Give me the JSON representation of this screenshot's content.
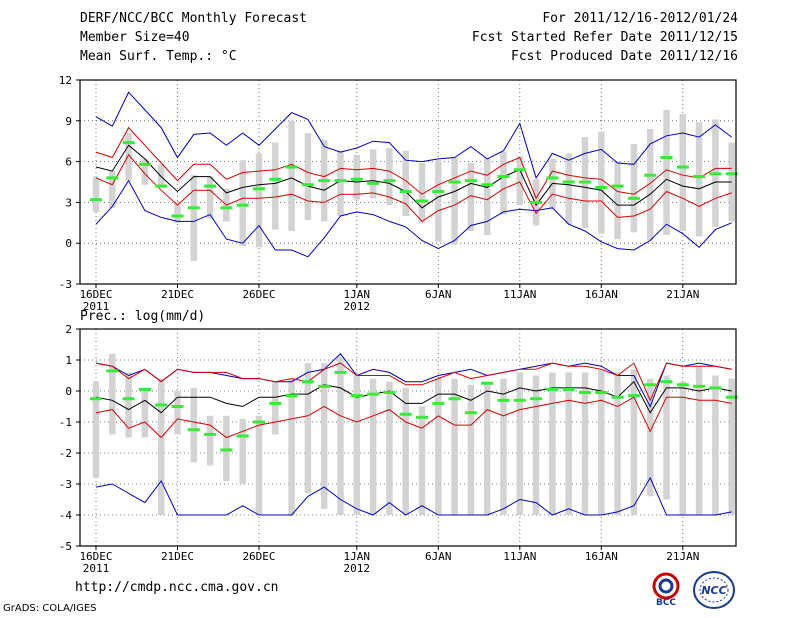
{
  "header": {
    "title": "DERF/NCC/BCC Monthly Forecast",
    "member_size": "Member Size=40",
    "forecast_range": "For 2011/12/16-2012/01/24",
    "started_date": "Fcst Started Refer Date 2011/12/15",
    "produced_date": "Fcst Produced Date 2011/12/16"
  },
  "footer": {
    "url": "http://cmdp.ncc.cma.gov.cn",
    "credit": "GrADS: COLA/IGES",
    "logo_bcc": "BCC",
    "logo_ncc": "NCC"
  },
  "colors": {
    "box": "#d3d3d3",
    "median": "#33ee33",
    "mean": "#000000",
    "sd": "#dd0000",
    "extreme": "#0000cc",
    "frame": "#000000"
  },
  "chart_data": [
    {
      "type": "box",
      "title": "Mean Surf. Temp.: °C",
      "ylim": [
        -3,
        12
      ],
      "yticks": [
        "-3",
        "0",
        "3",
        "6",
        "9",
        "12"
      ],
      "ytick_values": [
        -3,
        0,
        3,
        6,
        9,
        12
      ],
      "xlabels": [
        "16DEC",
        "21DEC",
        "26DEC",
        "1JAN",
        "6JAN",
        "11JAN",
        "16JAN",
        "21JAN"
      ],
      "xlabel_days": [
        0,
        5,
        10,
        16,
        21,
        26,
        31,
        36
      ],
      "year_labels": [
        {
          "day": 0,
          "text": "2011"
        },
        {
          "day": 16,
          "text": "2012"
        }
      ],
      "grid": true,
      "days": 40,
      "box_low": [
        2.3,
        2.6,
        4.6,
        4.3,
        4.1,
        1.5,
        -1.3,
        1.8,
        1.6,
        -0.2,
        -0.3,
        1.0,
        0.9,
        1.7,
        1.6,
        2.0,
        3.2,
        3.3,
        2.8,
        2.0,
        1.5,
        0.1,
        -0.1,
        0.9,
        0.6,
        2.1,
        2.8,
        1.3,
        2.5,
        1.4,
        1.1,
        0.7,
        0.3,
        0.8,
        0.2,
        0.6,
        0.9,
        0.5,
        1.2,
        1.6
      ],
      "box_high": [
        4.9,
        5.3,
        8.1,
        6.2,
        5.8,
        3.1,
        5.0,
        4.9,
        4.0,
        6.1,
        6.6,
        7.4,
        9.0,
        8.1,
        7.6,
        6.8,
        6.5,
        6.9,
        7.0,
        6.8,
        5.9,
        6.1,
        6.3,
        5.9,
        6.2,
        6.7,
        6.4,
        4.7,
        6.2,
        6.6,
        7.8,
        8.2,
        6.0,
        7.3,
        8.4,
        9.8,
        9.5,
        8.9,
        9.1,
        7.4
      ],
      "median": [
        3.2,
        4.8,
        7.4,
        5.8,
        4.2,
        2.0,
        2.6,
        4.2,
        2.6,
        2.8,
        4.0,
        4.7,
        5.6,
        4.3,
        4.6,
        4.6,
        4.7,
        4.4,
        4.6,
        3.8,
        3.1,
        3.8,
        4.5,
        4.6,
        4.3,
        4.9,
        5.4,
        3.0,
        4.8,
        4.5,
        4.5,
        4.1,
        4.2,
        3.3,
        5.0,
        6.3,
        5.6,
        4.9,
        5.1,
        5.1
      ],
      "mean": [
        5.6,
        5.3,
        7.2,
        6.2,
        4.9,
        3.8,
        4.9,
        4.9,
        3.7,
        4.1,
        4.3,
        4.4,
        4.8,
        4.2,
        3.9,
        4.6,
        4.5,
        4.6,
        4.4,
        3.8,
        2.6,
        3.4,
        3.8,
        4.4,
        4.1,
        4.9,
        5.4,
        2.8,
        4.4,
        4.3,
        4.1,
        3.9,
        2.8,
        2.8,
        3.6,
        4.7,
        4.2,
        4.0,
        4.5,
        4.5
      ],
      "mean_plus_sd": [
        6.7,
        6.3,
        8.5,
        7.2,
        5.9,
        4.6,
        5.8,
        5.8,
        4.7,
        5.2,
        5.3,
        5.4,
        5.8,
        5.2,
        4.9,
        5.5,
        5.4,
        5.5,
        5.3,
        4.6,
        3.6,
        4.3,
        4.8,
        5.3,
        5.0,
        5.8,
        6.3,
        3.3,
        5.3,
        5.0,
        4.8,
        4.7,
        3.8,
        3.6,
        4.4,
        5.4,
        5.0,
        4.8,
        5.5,
        5.5
      ],
      "mean_minus_sd": [
        4.8,
        4.3,
        6.5,
        5.1,
        3.9,
        2.8,
        3.9,
        3.9,
        2.8,
        3.3,
        3.3,
        3.4,
        3.6,
        3.1,
        3.0,
        3.6,
        3.6,
        3.7,
        3.4,
        2.9,
        1.6,
        2.4,
        2.8,
        3.5,
        3.2,
        4.0,
        4.5,
        2.2,
        3.6,
        3.3,
        3.1,
        3.1,
        1.9,
        2.0,
        2.5,
        3.8,
        3.3,
        2.7,
        3.3,
        3.7
      ],
      "max": [
        9.3,
        8.6,
        11.1,
        9.8,
        8.5,
        6.3,
        8.0,
        8.1,
        7.2,
        8.1,
        7.2,
        8.4,
        9.6,
        9.1,
        7.1,
        6.7,
        7.0,
        7.5,
        7.4,
        6.1,
        6.0,
        6.2,
        6.3,
        7.1,
        6.2,
        6.8,
        8.8,
        4.8,
        6.6,
        6.1,
        6.6,
        6.9,
        5.9,
        5.8,
        7.3,
        7.9,
        8.1,
        7.8,
        8.7,
        7.8
      ],
      "min": [
        1.4,
        2.7,
        4.6,
        2.4,
        1.9,
        1.6,
        1.6,
        2.1,
        0.3,
        0.0,
        1.3,
        -0.5,
        -0.5,
        -1.0,
        0.4,
        2.0,
        2.3,
        2.1,
        1.6,
        1.2,
        0.2,
        -0.4,
        0.2,
        1.3,
        1.6,
        2.3,
        2.5,
        2.4,
        2.6,
        1.4,
        0.9,
        0.1,
        -0.4,
        -0.5,
        0.2,
        1.4,
        0.7,
        -0.3,
        1.0,
        1.5
      ]
    },
    {
      "type": "box",
      "title": "Prec.: log(mm/d)",
      "ylim": [
        -5,
        2
      ],
      "yticks": [
        "-5",
        "-4",
        "-3",
        "-2",
        "-1",
        "0",
        "1",
        "2"
      ],
      "ytick_values": [
        -5,
        -4,
        -3,
        -2,
        -1,
        0,
        1,
        2
      ],
      "xlabels": [
        "16DEC",
        "21DEC",
        "26DEC",
        "1JAN",
        "6JAN",
        "11JAN",
        "16JAN",
        "21JAN"
      ],
      "xlabel_days": [
        0,
        5,
        10,
        16,
        21,
        26,
        31,
        36
      ],
      "year_labels": [
        {
          "day": 0,
          "text": "2011"
        },
        {
          "day": 16,
          "text": "2012"
        }
      ],
      "grid": true,
      "days": 40,
      "box_low": [
        -2.8,
        -1.4,
        -1.5,
        -1.5,
        -4.0,
        -1.4,
        -2.3,
        -2.4,
        -2.9,
        -3.0,
        -4.0,
        -1.4,
        -4.0,
        -3.3,
        -3.8,
        -4.0,
        -4.0,
        -4.0,
        -4.0,
        -4.0,
        -4.0,
        -4.0,
        -4.0,
        -4.0,
        -4.0,
        -4.0,
        -4.0,
        -4.0,
        -4.0,
        -4.0,
        -4.0,
        -4.0,
        -4.0,
        -4.0,
        -3.4,
        -3.5,
        -4.0,
        -4.0,
        -4.0,
        -4.0
      ],
      "box_high": [
        0.3,
        1.2,
        0.6,
        0.0,
        0.4,
        0.0,
        0.1,
        -0.8,
        -0.8,
        -0.9,
        -0.8,
        0.3,
        0.4,
        0.9,
        0.9,
        1.1,
        0.5,
        0.4,
        0.3,
        0.1,
        -0.5,
        0.4,
        0.4,
        0.2,
        0.3,
        0.4,
        0.6,
        0.5,
        0.6,
        0.6,
        0.6,
        0.7,
        0.6,
        0.7,
        0.4,
        0.5,
        0.3,
        0.8,
        0.5,
        0.4
      ],
      "median": [
        -0.25,
        0.65,
        -0.25,
        0.05,
        -0.45,
        -0.5,
        -1.25,
        -1.4,
        -1.9,
        -1.45,
        -1.0,
        -0.4,
        -0.15,
        0.3,
        0.15,
        0.6,
        -0.15,
        -0.1,
        -0.05,
        -0.75,
        -0.85,
        -0.4,
        -0.25,
        -0.7,
        0.25,
        -0.3,
        -0.3,
        -0.25,
        0.05,
        0.05,
        -0.05,
        -0.05,
        -0.2,
        -0.15,
        0.2,
        0.3,
        0.2,
        0.15,
        0.1,
        -0.2
      ],
      "mean": [
        -0.2,
        -0.3,
        -0.6,
        -0.3,
        -0.7,
        -0.2,
        -0.2,
        -0.2,
        -0.4,
        -0.5,
        -0.2,
        -0.2,
        -0.1,
        -0.1,
        0.2,
        0.1,
        -0.2,
        -0.1,
        0.0,
        -0.4,
        -0.4,
        -0.1,
        -0.1,
        -0.3,
        0.0,
        -0.1,
        0.1,
        0.0,
        0.1,
        0.1,
        0.1,
        0.0,
        -0.2,
        0.3,
        -0.7,
        0.1,
        0.1,
        0.0,
        0.1,
        0.0
      ],
      "mean_plus_sd": [
        0.9,
        0.8,
        0.4,
        0.7,
        0.3,
        0.7,
        0.6,
        0.6,
        0.6,
        0.4,
        0.4,
        0.3,
        0.4,
        0.3,
        0.7,
        0.9,
        0.5,
        0.5,
        0.5,
        0.2,
        0.2,
        0.4,
        0.6,
        0.4,
        0.5,
        0.6,
        0.7,
        0.7,
        0.9,
        0.8,
        0.8,
        0.7,
        0.5,
        0.9,
        -0.3,
        0.9,
        0.8,
        0.8,
        0.8,
        0.7
      ],
      "mean_minus_sd": [
        -0.7,
        -0.6,
        -1.2,
        -1.0,
        -1.5,
        -0.9,
        -1.0,
        -1.1,
        -1.5,
        -1.3,
        -1.1,
        -1.0,
        -0.9,
        -0.8,
        -0.5,
        -0.8,
        -1.0,
        -0.8,
        -0.6,
        -1.0,
        -1.2,
        -0.8,
        -1.1,
        -1.1,
        -0.6,
        -0.8,
        -0.6,
        -0.5,
        -0.4,
        -0.3,
        -0.4,
        -0.3,
        -0.5,
        -0.2,
        -1.3,
        -0.2,
        -0.2,
        -0.3,
        -0.3,
        -0.4
      ],
      "max": [
        0.9,
        0.8,
        0.5,
        0.7,
        0.3,
        0.7,
        0.6,
        0.6,
        0.5,
        0.4,
        0.4,
        0.3,
        0.3,
        0.6,
        0.7,
        1.2,
        0.5,
        0.7,
        0.6,
        0.3,
        0.3,
        0.5,
        0.6,
        0.7,
        0.5,
        0.6,
        0.7,
        0.8,
        0.9,
        0.8,
        0.9,
        0.8,
        0.5,
        0.5,
        -0.5,
        0.9,
        0.8,
        0.9,
        0.8,
        0.7
      ],
      "min": [
        -3.1,
        -3.0,
        -3.3,
        -3.6,
        -2.9,
        -4.0,
        -4.0,
        -4.0,
        -4.0,
        -3.7,
        -4.0,
        -4.0,
        -4.0,
        -3.4,
        -3.1,
        -3.5,
        -3.8,
        -4.0,
        -3.6,
        -4.0,
        -3.7,
        -4.0,
        -4.0,
        -4.0,
        -4.0,
        -3.8,
        -3.5,
        -3.6,
        -4.0,
        -3.8,
        -4.0,
        -4.0,
        -3.9,
        -3.7,
        -2.8,
        -4.0,
        -4.0,
        -4.0,
        -4.0,
        -3.9
      ]
    }
  ]
}
